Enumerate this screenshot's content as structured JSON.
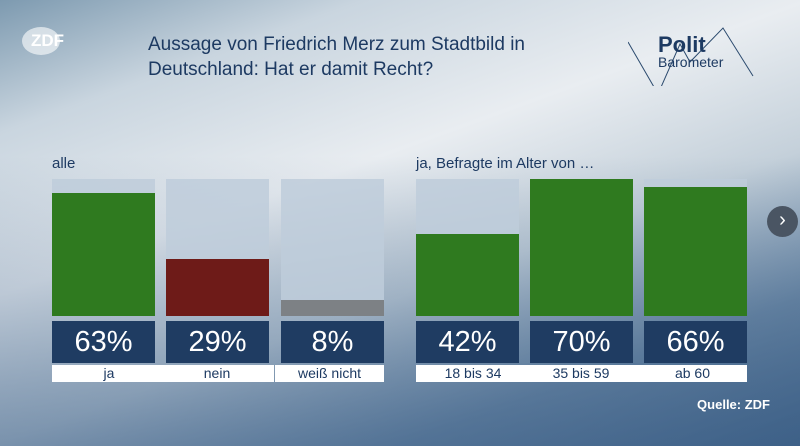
{
  "logo": "ZDF",
  "title": "Aussage von Friedrich Merz zum Stadtbild in Deutschland: Hat er damit Recht?",
  "brand": {
    "line1": "Polit",
    "line2": "Barometer"
  },
  "source": "Quelle: ZDF",
  "colors": {
    "yes": "#2f7a1f",
    "no": "#6e1b18",
    "dontknow": "#7d8185"
  },
  "chart_data": {
    "type": "bar",
    "ylim": [
      0,
      70
    ],
    "groups": [
      {
        "label": "alle",
        "categories": [
          "ja",
          "nein",
          "weiß nicht"
        ],
        "values": [
          63,
          29,
          8
        ],
        "value_labels": [
          "63%",
          "29%",
          "8%"
        ],
        "colors": [
          "yes",
          "no",
          "dontknow"
        ]
      },
      {
        "label": "ja, Befragte im Alter von …",
        "categories": [
          "18 bis 34",
          "35 bis 59",
          "ab 60"
        ],
        "values": [
          42,
          70,
          66
        ],
        "value_labels": [
          "42%",
          "70%",
          "66%"
        ],
        "colors": [
          "yes",
          "yes",
          "yes"
        ]
      }
    ]
  }
}
